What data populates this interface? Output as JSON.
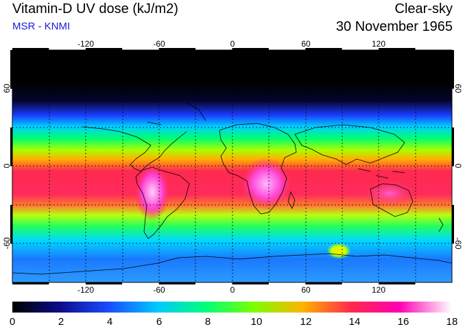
{
  "header": {
    "title": "Vitamin-D UV dose (kJ/m2)",
    "subtitle": "MSR - KNMI",
    "sky_condition": "Clear-sky",
    "date": "30 November 1965"
  },
  "map": {
    "lon_ticks": [
      "-120",
      "-60",
      "0",
      "60",
      "120"
    ],
    "lat_ticks": [
      "60",
      "0",
      "-60"
    ],
    "lon_range": [
      -180,
      180
    ],
    "lat_range": [
      -90,
      90
    ],
    "grid": "dotted, every 30 degrees"
  },
  "colorbar": {
    "labels": [
      "0",
      "2",
      "4",
      "6",
      "8",
      "10",
      "12",
      "14",
      "16",
      "18"
    ],
    "min": 0,
    "max": 18,
    "colors": [
      "#000000",
      "#0d0d8c",
      "#1a4dff",
      "#00c8ff",
      "#00ff7a",
      "#7cff00",
      "#ffb300",
      "#ff2a4a",
      "#ff00b4",
      "#ffffff"
    ]
  },
  "colors": {
    "grid": "#000000",
    "coast": "#000000"
  }
}
